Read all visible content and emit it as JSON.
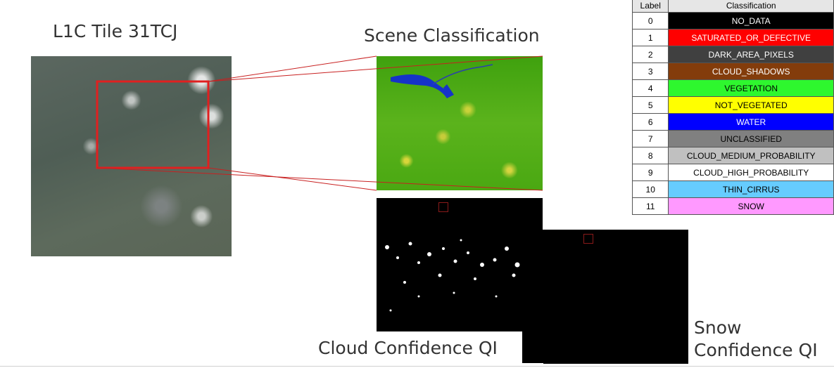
{
  "titles": {
    "l1c": "L1C Tile 31TCJ",
    "scene": "Scene Classification",
    "cloud": "Cloud Confidence QI",
    "snow_line1": "Snow",
    "snow_line2": "Confidence QI"
  },
  "legend": {
    "header_label": "Label",
    "header_class": "Classification",
    "rows": [
      {
        "label": "0",
        "name": "NO_DATA",
        "bg": "#000000",
        "fg": "#ffffff"
      },
      {
        "label": "1",
        "name": "SATURATED_OR_DEFECTIVE",
        "bg": "#ff0000",
        "fg": "#ffffff"
      },
      {
        "label": "2",
        "name": "DARK_AREA_PIXELS",
        "bg": "#404040",
        "fg": "#ffffff"
      },
      {
        "label": "3",
        "name": "CLOUD_SHADOWS",
        "bg": "#833c0b",
        "fg": "#ffffff"
      },
      {
        "label": "4",
        "name": "VEGETATION",
        "bg": "#2ef72e",
        "fg": "#000000"
      },
      {
        "label": "5",
        "name": "NOT_VEGETATED",
        "bg": "#ffff00",
        "fg": "#000000"
      },
      {
        "label": "6",
        "name": "WATER",
        "bg": "#0000ff",
        "fg": "#ffffff"
      },
      {
        "label": "7",
        "name": "UNCLASSIFIED",
        "bg": "#808080",
        "fg": "#000000"
      },
      {
        "label": "8",
        "name": "CLOUD_MEDIUM_PROBABILITY",
        "bg": "#c0c0c0",
        "fg": "#000000"
      },
      {
        "label": "9",
        "name": "CLOUD_HIGH_PROBABILITY",
        "bg": "#ffffff",
        "fg": "#000000"
      },
      {
        "label": "10",
        "name": "THIN_CIRRUS",
        "bg": "#66ccff",
        "fg": "#000000"
      },
      {
        "label": "11",
        "name": "SNOW",
        "bg": "#ff99ff",
        "fg": "#000000"
      }
    ]
  },
  "colors": {
    "zoom_box": "#e02020",
    "connector": "#c82020"
  }
}
